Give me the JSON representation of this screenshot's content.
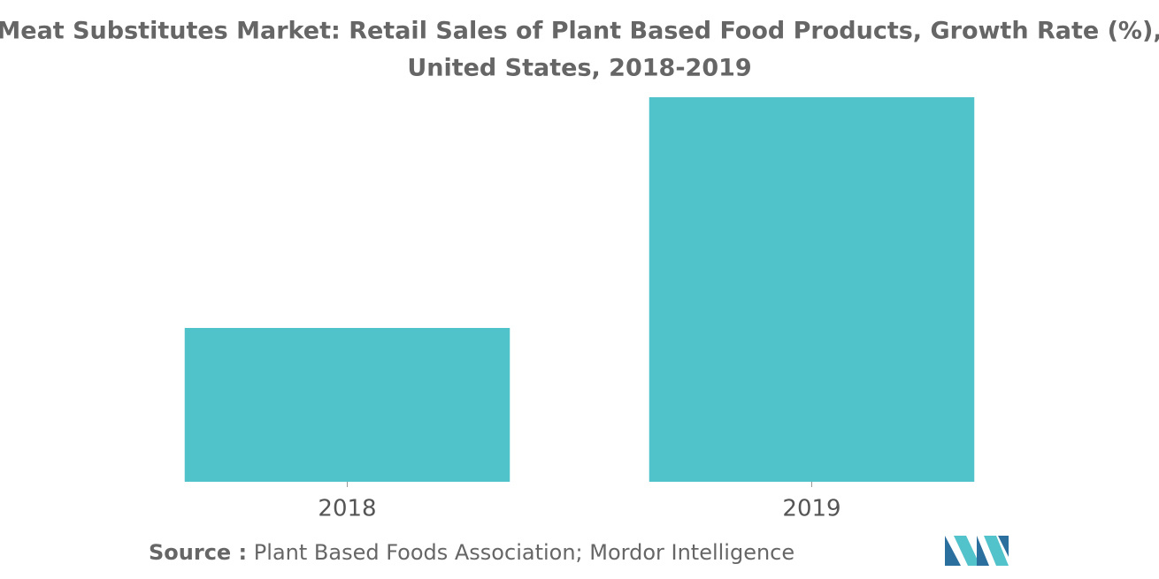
{
  "chart_data": {
    "type": "bar",
    "title": "Meat Substitutes Market: Retail Sales of Plant Based Food Products, Growth Rate (%),",
    "subtitle": "United States, 2018-2019",
    "categories": [
      "2018",
      "2019"
    ],
    "values": [
      4,
      10
    ],
    "color": "#4fc3c9",
    "source_label": "Source :",
    "source_text": "Plant Based Foods Association; Mordor Intelligence"
  }
}
